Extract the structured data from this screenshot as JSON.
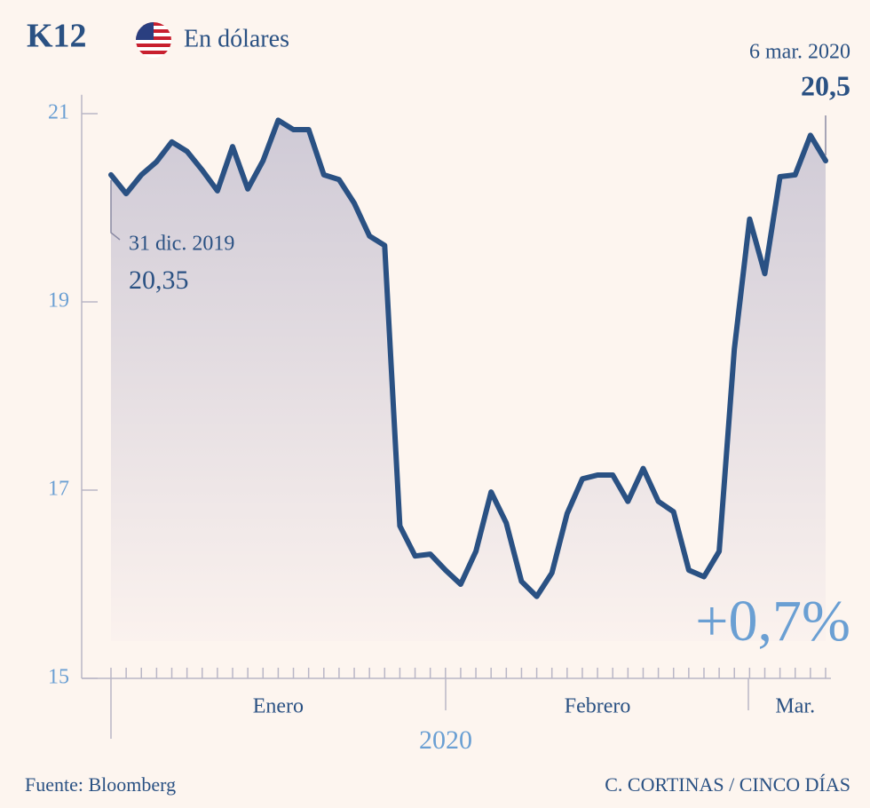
{
  "chart_data": {
    "type": "line",
    "title": "K12",
    "subtitle": "En dólares",
    "categories": [
      null,
      null,
      null,
      null,
      null,
      null,
      null,
      null,
      null,
      null,
      null,
      "Enero",
      null,
      null,
      null,
      null,
      null,
      null,
      null,
      null,
      null,
      null,
      null,
      null,
      null,
      null,
      null,
      null,
      null,
      null,
      null,
      null,
      "Febrero",
      null,
      null,
      null,
      null,
      null,
      null,
      null,
      null,
      null,
      null,
      null,
      null,
      "Mar.",
      null,
      null
    ],
    "series": [
      {
        "name": "K12",
        "color": "#2a5183",
        "values": [
          20.35,
          20.15,
          20.35,
          20.49,
          20.7,
          20.6,
          20.4,
          20.18,
          20.65,
          20.2,
          20.5,
          20.93,
          20.83,
          20.83,
          20.35,
          20.3,
          20.05,
          19.7,
          19.6,
          16.62,
          16.3,
          16.32,
          16.15,
          16.0,
          16.35,
          16.98,
          16.65,
          16.03,
          15.87,
          16.12,
          16.75,
          17.12,
          17.16,
          17.16,
          16.88,
          17.23,
          16.88,
          16.77,
          16.15,
          16.08,
          16.35,
          18.5,
          19.88,
          19.3,
          20.33,
          20.35,
          20.77,
          20.5
        ]
      }
    ],
    "ylim": [
      15,
      21.2
    ],
    "yticks": [
      15,
      17,
      19,
      21
    ],
    "x_axis_label": "2020",
    "annotations": {
      "start_date": "31 dic. 2019",
      "start_value": "20,35",
      "end_date": "6 mar. 2020",
      "end_value": "20,5",
      "change": "+0,7%"
    },
    "source": "Fuente: Bloomberg",
    "credit": "C. CORTINAS / CINCO DÍAS"
  }
}
